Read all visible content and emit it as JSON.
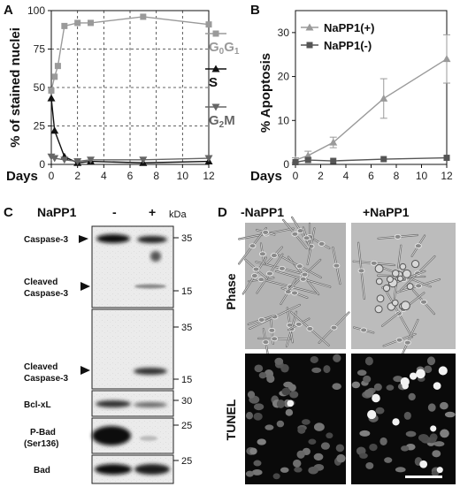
{
  "panel_labels": {
    "a": "A",
    "b": "B",
    "c": "C",
    "d": "D"
  },
  "chart_data": [
    {
      "type": "line",
      "panel": "A",
      "ylabel": "% of stained nuclei",
      "xlabel": "Days",
      "xlim": [
        0,
        12
      ],
      "ylim": [
        0,
        100
      ],
      "xticks": [
        0,
        2,
        4,
        6,
        8,
        10,
        12
      ],
      "yticks": [
        0,
        25,
        50,
        75,
        100
      ],
      "grid": "dashed",
      "series": [
        {
          "name": "G0G1",
          "name_main": "G",
          "name_sub1": "0",
          "name_mid": "G",
          "name_sub2": "1",
          "color": "#9a9a9a",
          "marker": "square",
          "x": [
            0,
            0.25,
            0.5,
            1,
            2,
            3,
            7,
            12
          ],
          "y": [
            48,
            57,
            64,
            90,
            92,
            92,
            96,
            91
          ]
        },
        {
          "name": "S",
          "color": "#111111",
          "marker": "triangle-up",
          "x": [
            0,
            0.25,
            1,
            2,
            3,
            7,
            12
          ],
          "y": [
            43,
            22,
            5,
            1,
            2,
            1,
            2
          ]
        },
        {
          "name": "G2M",
          "name_main": "G",
          "name_sub": "2",
          "name_tail": "M",
          "color": "#666666",
          "marker": "triangle-down",
          "x": [
            0,
            0.25,
            1,
            2,
            3,
            7,
            12
          ],
          "y": [
            5,
            4,
            3,
            2,
            3,
            3,
            4
          ]
        }
      ]
    },
    {
      "type": "line",
      "panel": "B",
      "ylabel": "% Apoptosis",
      "xlabel": "Days",
      "xlim": [
        0,
        12
      ],
      "ylim": [
        0,
        35
      ],
      "xticks": [
        0,
        2,
        4,
        6,
        8,
        10,
        12
      ],
      "yticks": [
        0,
        10,
        20,
        30
      ],
      "legend": "top-left",
      "series": [
        {
          "name": "NaPP1(+)",
          "color": "#9a9a9a",
          "marker": "triangle-up",
          "x": [
            0,
            1,
            3,
            7,
            12
          ],
          "y": [
            1,
            2,
            5,
            15,
            24
          ],
          "err": [
            0.5,
            1,
            1.2,
            4.5,
            5.5
          ]
        },
        {
          "name": "NaPP1(-)",
          "color": "#555555",
          "marker": "square",
          "x": [
            0,
            1,
            3,
            7,
            12
          ],
          "y": [
            0.5,
            1,
            0.8,
            1.2,
            1.5
          ],
          "err": [
            0.2,
            0.2,
            0.2,
            0.2,
            0.2
          ]
        }
      ]
    }
  ],
  "blot": {
    "header": "NaPP1",
    "minus": "-",
    "plus": "+",
    "kda": "kDa",
    "labels": {
      "caspase3": "Caspase-3",
      "cleaved1_line1": "Cleaved",
      "cleaved1_line2": "Caspase-3",
      "cleaved2_line1": "Cleaved",
      "cleaved2_line2": "Caspase-3",
      "bclxl": "Bcl-xL",
      "pbad_line1": "P-Bad",
      "pbad_line2": "(Ser136)",
      "bad": "Bad"
    },
    "markers": {
      "m35a": "35",
      "m15a": "15",
      "m35b": "35",
      "m15b": "15",
      "m30": "30",
      "m25a": "25",
      "m25b": "25"
    }
  },
  "micro": {
    "col_minus": "-NaPP1",
    "col_plus": "+NaPP1",
    "row_phase": "Phase",
    "row_tunel": "TUNEL"
  }
}
